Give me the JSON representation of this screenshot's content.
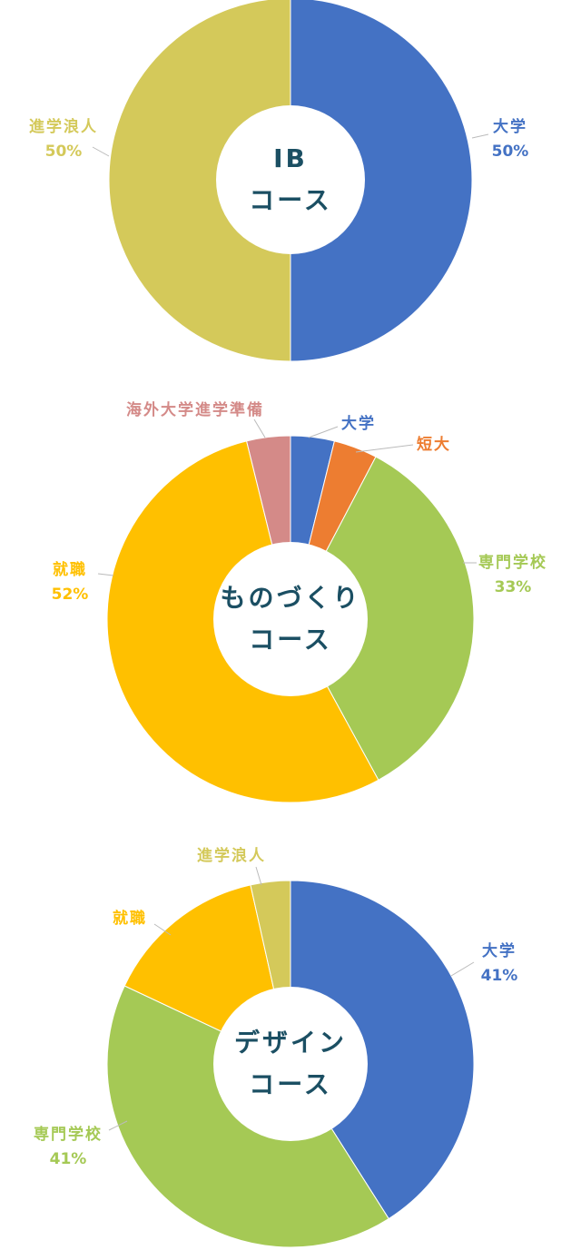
{
  "chart_data": [
    {
      "type": "donut",
      "center_text": [
        "IB",
        "コース"
      ],
      "categories": [
        "大学",
        "進学浪人"
      ],
      "values": [
        50,
        50
      ],
      "value_labels": [
        "50%",
        "50%"
      ],
      "colors": [
        "#4472c4",
        "#d4c95a"
      ]
    },
    {
      "type": "donut",
      "center_text": [
        "ものづくり",
        "コース"
      ],
      "categories": [
        "大学",
        "短大",
        "専門学校",
        "就職",
        "海外大学進学準備"
      ],
      "values": [
        3.7,
        3.7,
        33,
        52,
        3.7
      ],
      "value_labels": [
        null,
        null,
        "33%",
        "52%",
        null
      ],
      "colors": [
        "#4472c4",
        "#ed7d31",
        "#a5c955",
        "#ffc000",
        "#d48a88"
      ]
    },
    {
      "type": "donut",
      "center_text": [
        "デザイン",
        "コース"
      ],
      "categories": [
        "大学",
        "専門学校",
        "就職",
        "進学浪人"
      ],
      "values": [
        41,
        41,
        14.5,
        3.5
      ],
      "value_labels": [
        "41%",
        "41%",
        null,
        null
      ],
      "colors": [
        "#4472c4",
        "#a5c955",
        "#ffc000",
        "#d4c95a"
      ]
    }
  ]
}
